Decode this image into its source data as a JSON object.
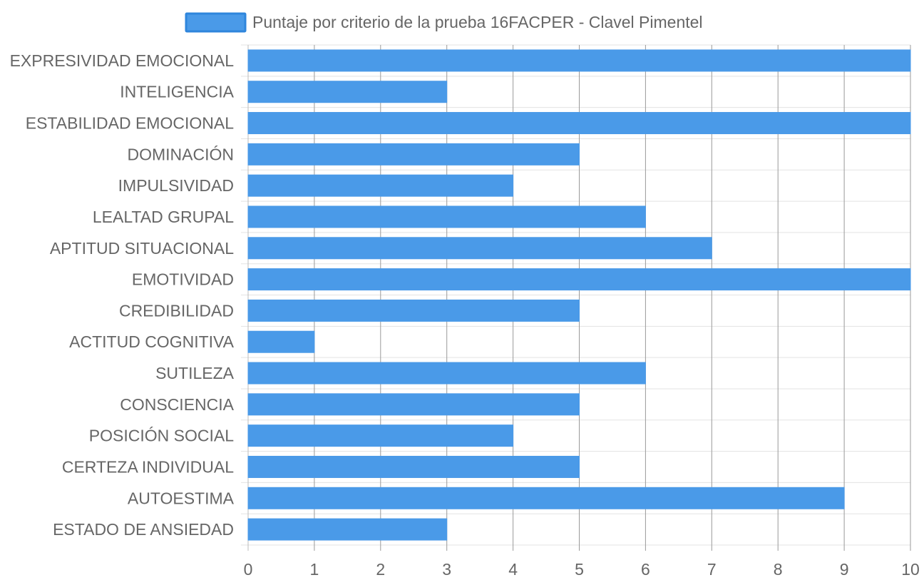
{
  "chart_data": {
    "type": "bar",
    "orientation": "horizontal",
    "categories": [
      "EXPRESIVIDAD EMOCIONAL",
      "INTELIGENCIA",
      "ESTABILIDAD EMOCIONAL",
      "DOMINACIÓN",
      "IMPULSIVIDAD",
      "LEALTAD GRUPAL",
      "APTITUD SITUACIONAL",
      "EMOTIVIDAD",
      "CREDIBILIDAD",
      "ACTITUD COGNITIVA",
      "SUTILEZA",
      "CONSCIENCIA",
      "POSICIÓN SOCIAL",
      "CERTEZA INDIVIDUAL",
      "AUTOESTIMA",
      "ESTADO DE ANSIEDAD"
    ],
    "series": [
      {
        "name": "Puntaje por criterio de la prueba 16FACPER - Clavel Pimentel",
        "values": [
          10,
          3,
          10,
          5,
          4,
          6,
          7,
          10,
          5,
          1,
          6,
          5,
          4,
          5,
          9,
          3
        ],
        "color": "#4a9ae8",
        "border_color": "#2f86dc"
      }
    ],
    "xlim": [
      0,
      10
    ],
    "x_ticks": [
      "0",
      "1",
      "2",
      "3",
      "4",
      "5",
      "6",
      "7",
      "8",
      "9",
      "10"
    ],
    "grid": true,
    "legend_position": "top",
    "title": "",
    "xlabel": "",
    "ylabel": ""
  }
}
